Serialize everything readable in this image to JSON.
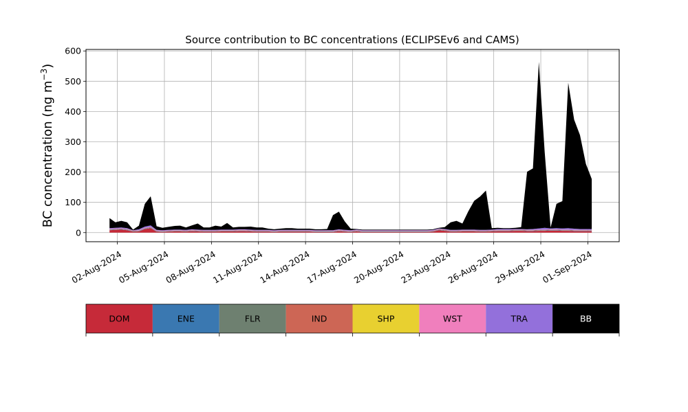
{
  "chart_data": {
    "type": "area",
    "title": "Source contribution to BC concentrations (ECLIPSEv6 and CAMS)",
    "xlabel": "",
    "ylabel_prefix": "BC concentration (ng m",
    "ylabel_sup": "−3",
    "ylabel_suffix": ")",
    "x_domain": [
      "2024-07-31T00:00",
      "2024-09-03T00:00"
    ],
    "ylim": [
      -30,
      605
    ],
    "yticks": [
      0,
      100,
      200,
      300,
      400,
      500,
      600
    ],
    "ytick_labels": [
      "0",
      "100",
      "200",
      "300",
      "400",
      "500",
      "600"
    ],
    "xticks": [
      "2024-08-02",
      "2024-08-05",
      "2024-08-08",
      "2024-08-11",
      "2024-08-14",
      "2024-08-17",
      "2024-08-20",
      "2024-08-23",
      "2024-08-26",
      "2024-08-29",
      "2024-09-01"
    ],
    "xtick_labels": [
      "02-Aug-2024",
      "05-Aug-2024",
      "08-Aug-2024",
      "11-Aug-2024",
      "14-Aug-2024",
      "17-Aug-2024",
      "20-Aug-2024",
      "23-Aug-2024",
      "26-Aug-2024",
      "29-Aug-2024",
      "01-Sep-2024"
    ],
    "grid": true,
    "stacked": true,
    "x": [
      "2024-08-01T12:00",
      "2024-08-01T21:00",
      "2024-08-02T06:00",
      "2024-08-02T15:00",
      "2024-08-03T00:00",
      "2024-08-03T09:00",
      "2024-08-03T18:00",
      "2024-08-04T03:00",
      "2024-08-04T12:00",
      "2024-08-04T21:00",
      "2024-08-05T06:00",
      "2024-08-05T15:00",
      "2024-08-06T00:00",
      "2024-08-06T09:00",
      "2024-08-06T18:00",
      "2024-08-07T03:00",
      "2024-08-07T12:00",
      "2024-08-07T21:00",
      "2024-08-08T06:00",
      "2024-08-08T15:00",
      "2024-08-09T00:00",
      "2024-08-09T09:00",
      "2024-08-09T18:00",
      "2024-08-10T03:00",
      "2024-08-10T12:00",
      "2024-08-10T21:00",
      "2024-08-11T06:00",
      "2024-08-11T15:00",
      "2024-08-12T00:00",
      "2024-08-12T09:00",
      "2024-08-12T18:00",
      "2024-08-13T03:00",
      "2024-08-13T12:00",
      "2024-08-13T21:00",
      "2024-08-14T06:00",
      "2024-08-14T15:00",
      "2024-08-15T00:00",
      "2024-08-15T09:00",
      "2024-08-15T18:00",
      "2024-08-16T03:00",
      "2024-08-16T12:00",
      "2024-08-16T21:00",
      "2024-08-17T06:00",
      "2024-08-17T15:00",
      "2024-08-18T00:00",
      "2024-08-18T09:00",
      "2024-08-18T18:00",
      "2024-08-19T03:00",
      "2024-08-19T12:00",
      "2024-08-19T21:00",
      "2024-08-20T06:00",
      "2024-08-20T15:00",
      "2024-08-21T00:00",
      "2024-08-21T09:00",
      "2024-08-21T18:00",
      "2024-08-22T03:00",
      "2024-08-22T12:00",
      "2024-08-22T21:00",
      "2024-08-23T06:00",
      "2024-08-23T15:00",
      "2024-08-24T00:00",
      "2024-08-24T09:00",
      "2024-08-24T18:00",
      "2024-08-25T03:00",
      "2024-08-25T12:00",
      "2024-08-25T21:00",
      "2024-08-26T06:00",
      "2024-08-26T15:00",
      "2024-08-27T00:00",
      "2024-08-27T09:00",
      "2024-08-27T18:00",
      "2024-08-28T03:00",
      "2024-08-28T12:00",
      "2024-08-28T21:00",
      "2024-08-29T06:00",
      "2024-08-29T15:00",
      "2024-08-30T00:00",
      "2024-08-30T09:00",
      "2024-08-30T18:00",
      "2024-08-31T03:00",
      "2024-08-31T12:00",
      "2024-08-31T21:00",
      "2024-09-01T06:00"
    ],
    "series": [
      {
        "name": "DOM",
        "color": "#C62A39",
        "values": [
          8,
          9,
          10,
          8,
          3,
          4,
          12,
          15,
          3,
          2,
          3,
          4,
          4,
          3,
          5,
          4,
          3,
          3,
          3,
          4,
          4,
          4,
          5,
          5,
          4,
          3,
          3,
          3,
          2,
          3,
          3,
          3,
          3,
          3,
          3,
          2,
          2,
          2,
          2,
          5,
          3,
          2,
          4,
          2,
          2,
          2,
          2,
          2,
          2,
          2,
          2,
          2,
          2,
          2,
          2,
          3,
          8,
          6,
          3,
          3,
          4,
          4,
          4,
          3,
          3,
          4,
          5,
          5,
          5,
          6,
          6,
          5,
          5,
          6,
          6,
          7,
          7,
          6,
          6,
          5,
          5,
          5,
          5
        ]
      },
      {
        "name": "ENE",
        "color": "#3A78B1",
        "values": [
          1,
          1,
          1,
          1,
          1,
          1,
          1,
          1,
          1,
          1,
          1,
          1,
          1,
          1,
          1,
          1,
          1,
          1,
          1,
          1,
          1,
          1,
          1,
          1,
          1,
          1,
          1,
          1,
          1,
          1,
          1,
          1,
          1,
          1,
          1,
          1,
          1,
          1,
          1,
          1,
          1,
          1,
          1,
          1,
          1,
          1,
          1,
          1,
          1,
          1,
          1,
          1,
          1,
          1,
          1,
          1,
          1,
          1,
          1,
          1,
          1,
          1,
          1,
          1,
          1,
          1,
          1,
          1,
          1,
          1,
          1,
          1,
          1,
          1,
          1,
          1,
          1,
          1,
          1,
          1,
          1,
          1,
          1
        ]
      },
      {
        "name": "FLR",
        "color": "#6E8070",
        "values": [
          1,
          1,
          1,
          1,
          1,
          1,
          1,
          1,
          1,
          1,
          1,
          1,
          1,
          1,
          1,
          1,
          1,
          1,
          1,
          1,
          1,
          1,
          1,
          1,
          1,
          1,
          1,
          1,
          1,
          1,
          1,
          1,
          1,
          1,
          1,
          1,
          1,
          1,
          1,
          1,
          1,
          1,
          1,
          1,
          1,
          1,
          1,
          1,
          1,
          1,
          1,
          1,
          1,
          1,
          1,
          1,
          1,
          1,
          1,
          1,
          1,
          1,
          1,
          1,
          1,
          1,
          1,
          1,
          1,
          1,
          1,
          1,
          1,
          1,
          1,
          1,
          1,
          1,
          1,
          1,
          1,
          1,
          1
        ]
      },
      {
        "name": "IND",
        "color": "#CD6655",
        "values": [
          1,
          1,
          1,
          1,
          1,
          1,
          1,
          1,
          1,
          1,
          1,
          1,
          1,
          1,
          1,
          1,
          1,
          1,
          1,
          1,
          1,
          1,
          1,
          1,
          1,
          1,
          1,
          1,
          1,
          1,
          1,
          1,
          1,
          1,
          1,
          1,
          1,
          1,
          1,
          1,
          1,
          1,
          1,
          1,
          1,
          1,
          1,
          1,
          1,
          1,
          1,
          1,
          1,
          1,
          1,
          1,
          1,
          1,
          1,
          1,
          1,
          1,
          1,
          1,
          1,
          1,
          1,
          1,
          1,
          1,
          1,
          1,
          1,
          1,
          1,
          1,
          1,
          1,
          1,
          1,
          1,
          1,
          1
        ]
      },
      {
        "name": "SHP",
        "color": "#E8D030",
        "values": [
          0,
          0,
          0,
          0,
          0,
          0,
          0,
          0,
          0,
          0,
          0,
          0,
          0,
          0,
          0,
          0,
          0,
          0,
          0,
          0,
          0,
          0,
          0,
          0,
          0,
          0,
          0,
          0,
          0,
          0,
          0,
          0,
          0,
          0,
          0,
          0,
          0,
          0,
          0,
          0,
          0,
          0,
          0,
          0,
          0,
          0,
          0,
          0,
          0,
          0,
          0,
          0,
          0,
          0,
          0,
          0,
          0,
          0,
          0,
          0,
          0,
          0,
          0,
          0,
          0,
          0,
          0,
          0,
          0,
          0,
          0,
          0,
          0,
          0,
          0,
          0,
          0,
          0,
          0,
          0,
          0,
          0,
          0
        ]
      },
      {
        "name": "WST",
        "color": "#F07FBD",
        "values": [
          1,
          1,
          1,
          1,
          1,
          1,
          1,
          1,
          1,
          1,
          1,
          1,
          1,
          1,
          1,
          1,
          1,
          1,
          1,
          1,
          1,
          1,
          1,
          1,
          1,
          1,
          1,
          1,
          1,
          1,
          1,
          1,
          1,
          1,
          1,
          1,
          1,
          1,
          1,
          1,
          1,
          1,
          1,
          1,
          1,
          1,
          1,
          1,
          1,
          1,
          1,
          1,
          1,
          1,
          1,
          1,
          1,
          1,
          1,
          1,
          1,
          1,
          1,
          1,
          1,
          1,
          1,
          1,
          1,
          1,
          1,
          1,
          1,
          1,
          1,
          1,
          1,
          1,
          1,
          1,
          1,
          1,
          1
        ]
      },
      {
        "name": "TRA",
        "color": "#9370DB",
        "values": [
          3,
          3,
          3,
          3,
          1,
          3,
          4,
          5,
          2,
          2,
          2,
          2,
          2,
          2,
          2,
          2,
          2,
          2,
          2,
          2,
          2,
          2,
          2,
          2,
          2,
          2,
          2,
          2,
          2,
          2,
          2,
          2,
          2,
          2,
          2,
          2,
          2,
          2,
          2,
          2,
          2,
          2,
          2,
          2,
          2,
          2,
          2,
          2,
          2,
          2,
          2,
          2,
          2,
          2,
          2,
          2,
          2,
          2,
          2,
          2,
          2,
          2,
          2,
          2,
          2,
          2,
          3,
          3,
          3,
          2,
          2,
          2,
          3,
          4,
          6,
          3,
          4,
          4,
          5,
          4,
          3,
          3,
          3
        ]
      },
      {
        "name": "BB",
        "color": "#000000",
        "values": [
          33,
          18,
          22,
          19,
          2,
          12,
          75,
          96,
          12,
          8,
          10,
          12,
          13,
          8,
          13,
          20,
          8,
          8,
          14,
          10,
          22,
          7,
          8,
          8,
          10,
          8,
          8,
          4,
          3,
          4,
          6,
          6,
          4,
          4,
          4,
          3,
          3,
          4,
          50,
          58,
          28,
          5,
          2,
          2,
          2,
          2,
          2,
          2,
          2,
          2,
          2,
          2,
          2,
          2,
          2,
          2,
          2,
          6,
          25,
          30,
          20,
          60,
          95,
          110,
          130,
          5,
          4,
          3,
          3,
          4,
          6,
          190,
          200,
          550,
          250,
          3,
          80,
          90,
          480,
          360,
          310,
          215,
          165
        ]
      }
    ]
  },
  "legend": {
    "entries": [
      {
        "name": "DOM",
        "color": "#C62A39",
        "text_color": "#000000"
      },
      {
        "name": "ENE",
        "color": "#3A78B1",
        "text_color": "#000000"
      },
      {
        "name": "FLR",
        "color": "#6E8070",
        "text_color": "#000000"
      },
      {
        "name": "IND",
        "color": "#CD6655",
        "text_color": "#000000"
      },
      {
        "name": "SHP",
        "color": "#E8D030",
        "text_color": "#000000"
      },
      {
        "name": "WST",
        "color": "#F07FBD",
        "text_color": "#000000"
      },
      {
        "name": "TRA",
        "color": "#9370DB",
        "text_color": "#000000"
      },
      {
        "name": "BB",
        "color": "#000000",
        "text_color": "#FFFFFF"
      }
    ]
  }
}
